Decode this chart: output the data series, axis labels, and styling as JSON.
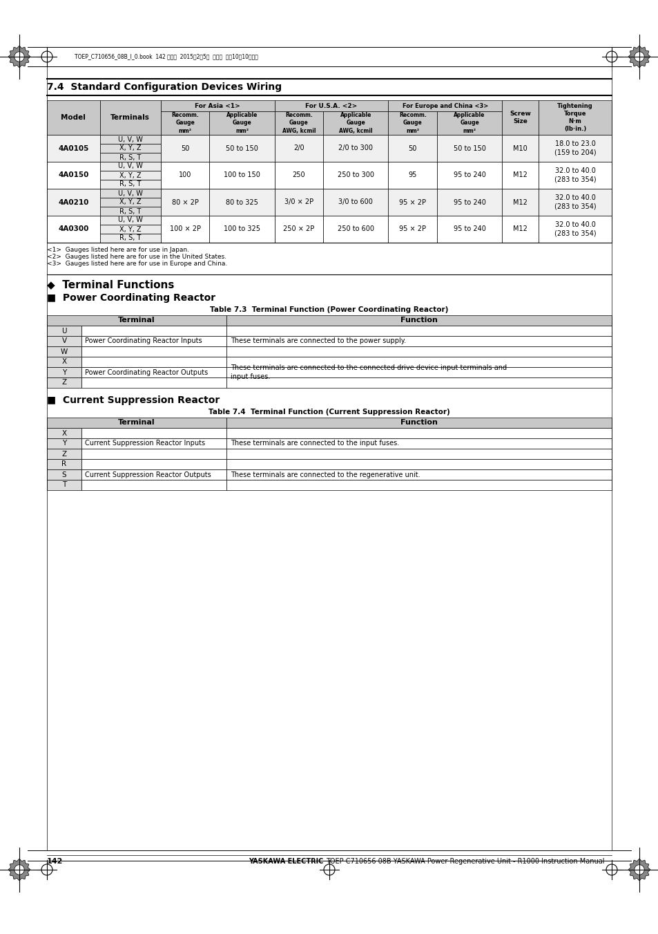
{
  "page_title": "7.4  Standard Configuration Devices Wiring",
  "section_title": "◆  Terminal Functions",
  "subsection1": "■  Power Coordinating Reactor",
  "table3_title": "Table 7.3  Terminal Function (Power Coordinating Reactor)",
  "subsection2": "■  Current Suppression Reactor",
  "table4_title": "Table 7.4  Terminal Function (Current Suppression Reactor)",
  "main_table_data": [
    [
      "4A0105",
      [
        "U, V, W",
        "X, Y, Z",
        "R, S, T"
      ],
      "50",
      "50 to 150",
      "2/0",
      "2/0 to 300",
      "50",
      "50 to 150",
      "M10",
      "18.0 to 23.0\n(159 to 204)"
    ],
    [
      "4A0150",
      [
        "U, V, W",
        "X, Y, Z",
        "R, S, T"
      ],
      "100",
      "100 to 150",
      "250",
      "250 to 300",
      "95",
      "95 to 240",
      "M12",
      "32.0 to 40.0\n(283 to 354)"
    ],
    [
      "4A0210",
      [
        "U, V, W",
        "X, Y, Z",
        "R, S, T"
      ],
      "80 × 2P",
      "80 to 325",
      "3/0 × 2P",
      "3/0 to 600",
      "95 × 2P",
      "95 to 240",
      "M12",
      "32.0 to 40.0\n(283 to 354)"
    ],
    [
      "4A0300",
      [
        "U, V, W",
        "X, Y, Z",
        "R, S, T"
      ],
      "100 × 2P",
      "100 to 325",
      "250 × 2P",
      "250 to 600",
      "95 × 2P",
      "95 to 240",
      "M12",
      "32.0 to 40.0\n(283 to 354)"
    ]
  ],
  "footnotes": [
    "<1>  Gauges listed here are for use in Japan.",
    "<2>  Gauges listed here are for use in the United States.",
    "<3>  Gauges listed here are for use in Europe and China."
  ],
  "page_number": "142",
  "footer_bold": "YASKAWA ELECTRIC",
  "footer_normal": "TOEP C710656 08B YASKAWA Power Regenerative Unit - R1000 Instruction Manual",
  "header_file_text": "TOEP_C710656_08B_I_0.book  142 ページ  2015年2月5日  木曜日  午前10晇10分７分"
}
